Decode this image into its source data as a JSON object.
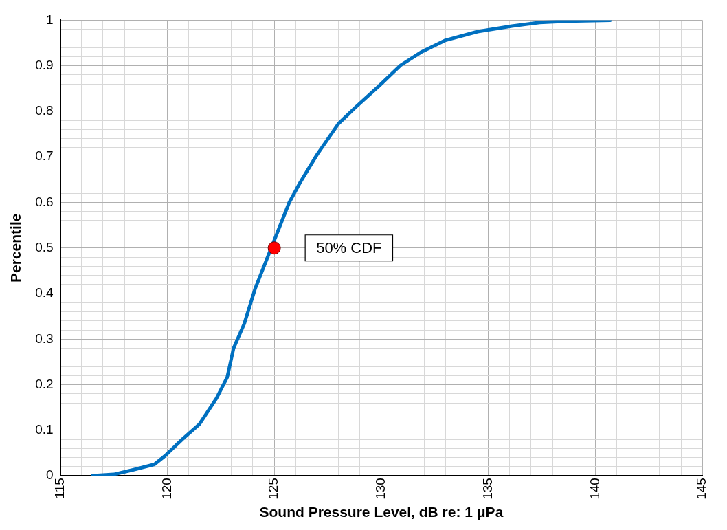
{
  "chart_data": {
    "type": "line",
    "xlabel": "Sound Pressure Level, dB re: 1 μPa",
    "ylabel": "Percentile",
    "xlim": [
      115,
      145
    ],
    "xticks": [
      115,
      {
        "value": 116,
        "label": null
      },
      {
        "value": 117,
        "label": null
      },
      {
        "value": 118,
        "label": null
      },
      {
        "value": 119,
        "label": null
      },
      120,
      {
        "value": 121,
        "label": null
      },
      {
        "value": 122,
        "label": null
      },
      {
        "value": 123,
        "label": null
      },
      {
        "value": 124,
        "label": null
      },
      125,
      {
        "value": 126,
        "label": null
      },
      {
        "value": 127,
        "label": null
      },
      {
        "value": 128,
        "label": null
      },
      {
        "value": 129,
        "label": null
      },
      130,
      {
        "value": 131,
        "label": null
      },
      {
        "value": 132,
        "label": null
      },
      {
        "value": 133,
        "label": null
      },
      {
        "value": 134,
        "label": null
      },
      135,
      {
        "value": 136,
        "label": null
      },
      {
        "value": 137,
        "label": null
      },
      {
        "value": 138,
        "label": null
      },
      {
        "value": 139,
        "label": null
      },
      140,
      {
        "value": 141,
        "label": null
      },
      {
        "value": 142,
        "label": null
      },
      {
        "value": 143,
        "label": null
      },
      {
        "value": 144,
        "label": null
      },
      145
    ],
    "ylim": [
      0,
      1
    ],
    "yticks": [
      0,
      {
        "value": 0.02,
        "label": null
      },
      {
        "value": 0.04,
        "label": null
      },
      {
        "value": 0.06,
        "label": null
      },
      {
        "value": 0.08,
        "label": null
      },
      0.1,
      {
        "value": 0.12,
        "label": null
      },
      {
        "value": 0.14,
        "label": null
      },
      {
        "value": 0.16,
        "label": null
      },
      {
        "value": 0.18,
        "label": null
      },
      0.2,
      {
        "value": 0.22,
        "label": null
      },
      {
        "value": 0.24,
        "label": null
      },
      {
        "value": 0.26,
        "label": null
      },
      {
        "value": 0.28,
        "label": null
      },
      0.3,
      {
        "value": 0.32,
        "label": null
      },
      {
        "value": 0.34,
        "label": null
      },
      {
        "value": 0.36,
        "label": null
      },
      {
        "value": 0.38,
        "label": null
      },
      0.4,
      {
        "value": 0.42,
        "label": null
      },
      {
        "value": 0.44,
        "label": null
      },
      {
        "value": 0.46,
        "label": null
      },
      {
        "value": 0.48,
        "label": null
      },
      0.5,
      {
        "value": 0.52,
        "label": null
      },
      {
        "value": 0.54,
        "label": null
      },
      {
        "value": 0.56,
        "label": null
      },
      {
        "value": 0.58,
        "label": null
      },
      0.6,
      {
        "value": 0.62,
        "label": null
      },
      {
        "value": 0.64,
        "label": null
      },
      {
        "value": 0.66,
        "label": null
      },
      {
        "value": 0.68,
        "label": null
      },
      0.7,
      {
        "value": 0.72,
        "label": null
      },
      {
        "value": 0.74,
        "label": null
      },
      {
        "value": 0.76,
        "label": null
      },
      {
        "value": 0.78,
        "label": null
      },
      0.8,
      {
        "value": 0.82,
        "label": null
      },
      {
        "value": 0.84,
        "label": null
      },
      {
        "value": 0.86,
        "label": null
      },
      {
        "value": 0.88,
        "label": null
      },
      0.9,
      {
        "value": 0.92,
        "label": null
      },
      {
        "value": 0.94,
        "label": null
      },
      {
        "value": 0.96,
        "label": null
      },
      {
        "value": 0.98,
        "label": null
      },
      1
    ],
    "grid": true,
    "series": [
      {
        "color": "#0070c0",
        "x": [
          116.5,
          117.5,
          118.4,
          119.4,
          119.9,
          120.7,
          121.5,
          122.3,
          122.8,
          123.1,
          123.6,
          124.1,
          125.7,
          126.2,
          127.0,
          128.0,
          128.8,
          129.9,
          130.9,
          131.9,
          133.0,
          134.5,
          136.1,
          137.4,
          138.7,
          140.7
        ],
        "values": [
          0,
          0.003,
          0.013,
          0.025,
          0.044,
          0.08,
          0.113,
          0.17,
          0.216,
          0.28,
          0.334,
          0.41,
          0.6,
          0.643,
          0.705,
          0.773,
          0.809,
          0.856,
          0.901,
          0.931,
          0.956,
          0.975,
          0.987,
          0.995,
          0.998,
          1
        ]
      },
      {
        "type": "scatter",
        "color": "#ff0000",
        "marker": "circle",
        "x": [
          125
        ],
        "values": [
          0.5
        ]
      }
    ],
    "annotations": [
      {
        "text": "50% CDF",
        "x": 125,
        "y": 0.5
      }
    ]
  }
}
